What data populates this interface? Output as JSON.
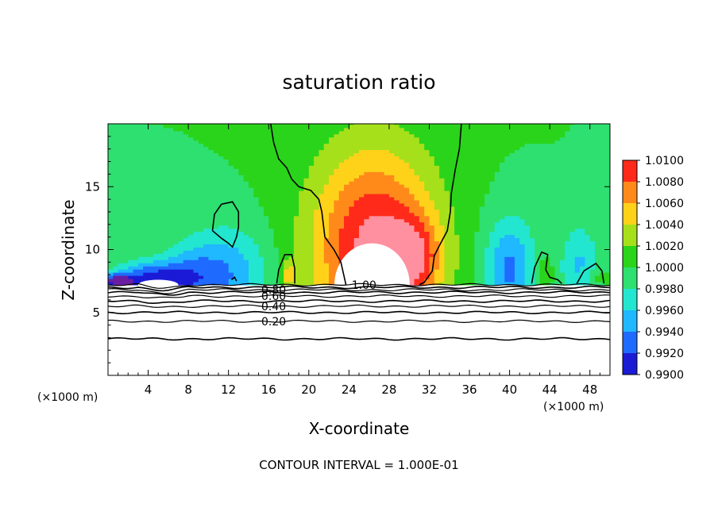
{
  "chart_data": {
    "type": "heatmap",
    "title": "saturation ratio",
    "xlabel": "X-coordinate",
    "ylabel": "Z-coordinate",
    "x_unit_left": "(×1000 m)",
    "x_unit_right": "(×1000 m)",
    "xlim": [
      0,
      50
    ],
    "ylim": [
      0,
      20
    ],
    "x_ticks": [
      4,
      8,
      12,
      16,
      20,
      24,
      28,
      32,
      36,
      40,
      44,
      48
    ],
    "y_ticks": [
      5,
      10,
      15
    ],
    "note": "CONTOUR INTERVAL = 1.000E-01",
    "colorbar": {
      "levels": [
        "0.9900",
        "0.9920",
        "0.9940",
        "0.9960",
        "0.9980",
        "1.0000",
        "1.0020",
        "1.0040",
        "1.0060",
        "1.0080",
        "1.0100"
      ],
      "colors": [
        "#6a1fa0",
        "#1b1bd6",
        "#1f6aff",
        "#20b8ff",
        "#22e6cf",
        "#2ee070",
        "#2ad41a",
        "#a6e01a",
        "#ffd21a",
        "#ff8a1a",
        "#ff2a1a",
        "#ff90a0"
      ]
    },
    "contour_lines": [
      {
        "label": "0.20",
        "z": 4.3
      },
      {
        "label": "0.40",
        "z": 5.5
      },
      {
        "label": "0.60",
        "z": 6.3
      },
      {
        "label": "0.80",
        "z": 6.8
      },
      {
        "label": "1.00",
        "z": 7.2
      }
    ],
    "extra_contour_z": [
      2.9,
      5.0,
      5.9,
      6.6,
      7.0
    ],
    "cloud_base_z": 7.2,
    "background_value": 1.0,
    "features": [
      {
        "x": 26.5,
        "z": 10.0,
        "value": 1.01,
        "rx": 6.2,
        "rz": 8.0
      },
      {
        "x": 30.5,
        "z": 9.5,
        "value": 1.005,
        "rx": 2.5,
        "rz": 3.0
      },
      {
        "x": 12.0,
        "z": 8.0,
        "value": 0.995,
        "rx": 4.0,
        "rz": 3.8
      },
      {
        "x": 4.0,
        "z": 7.6,
        "value": 0.992,
        "rx": 3.5,
        "rz": 1.4
      },
      {
        "x": 8.0,
        "z": 8.0,
        "value": 0.996,
        "rx": 3.0,
        "rz": 2.5
      },
      {
        "x": 40.0,
        "z": 8.5,
        "value": 0.994,
        "rx": 2.5,
        "rz": 4.0
      },
      {
        "x": 47.0,
        "z": 8.5,
        "value": 0.996,
        "rx": 2.0,
        "rz": 3.5
      },
      {
        "x": 18.0,
        "z": 8.0,
        "value": 1.004,
        "rx": 0.8,
        "rz": 1.0
      },
      {
        "x": 48.5,
        "z": 7.8,
        "value": 1.002,
        "rx": 1.3,
        "rz": 0.8
      },
      {
        "x": 43.5,
        "z": 8.2,
        "value": 1.002,
        "rx": 1.0,
        "rz": 1.3
      },
      {
        "x": 1.0,
        "z": 7.5,
        "value": 0.99,
        "rx": 1.2,
        "rz": 0.5
      }
    ]
  }
}
